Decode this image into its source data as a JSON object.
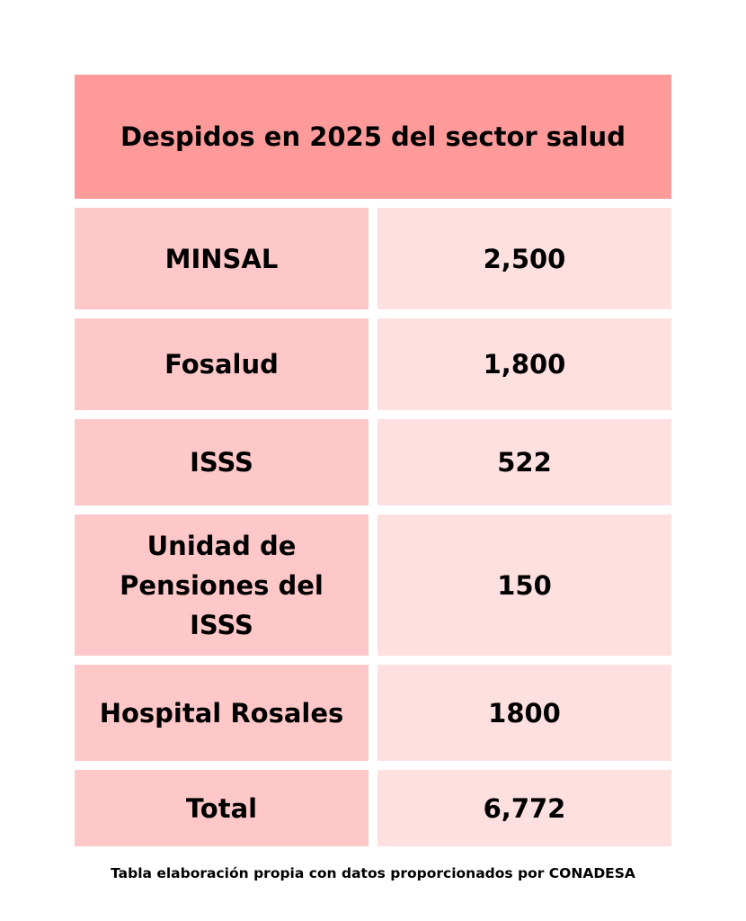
{
  "chart_data": {
    "type": "table",
    "title": "Despidos en 2025 del sector salud",
    "rows": [
      {
        "label": "MINSAL",
        "value": "2,500"
      },
      {
        "label": "Fosalud",
        "value": "1,800"
      },
      {
        "label": "ISSS",
        "value": "522"
      },
      {
        "label": "Unidad de Pensiones del ISSS",
        "value": "150"
      },
      {
        "label": "Hospital Rosales",
        "value": "1800"
      },
      {
        "label": "Total",
        "value": "6,772"
      }
    ],
    "colors": {
      "header": "#ff9a9a",
      "label_cells": "#ffc8c8",
      "value_cells": "#ffe0e0"
    }
  },
  "caption": "Tabla elaboración propia con datos proporcionados por CONADESA"
}
